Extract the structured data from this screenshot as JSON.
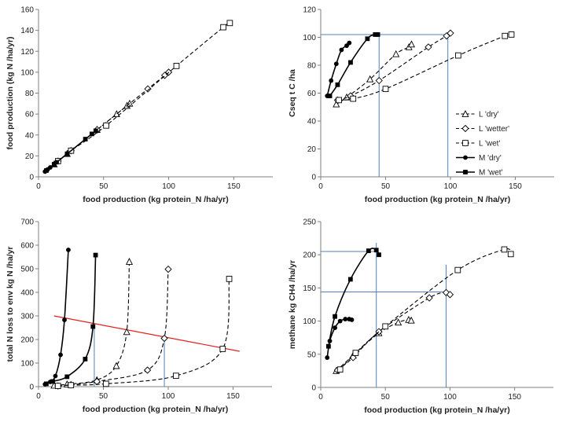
{
  "chart_data": [
    {
      "type": "line",
      "xlabel": "food production (kg protein_N /ha/yr)",
      "ylabel": "food production (kg N /ha/yr)",
      "xlim": [
        0,
        180
      ],
      "ylim": [
        0,
        160
      ],
      "xticks": [
        0,
        50,
        100,
        150
      ],
      "yticks": [
        0,
        20,
        40,
        60,
        80,
        100,
        120,
        140,
        160
      ],
      "series": [
        {
          "name": "L 'dry'",
          "marker": "triangle",
          "dash": true,
          "x": [
            12,
            22,
            45,
            60,
            68,
            70
          ],
          "y": [
            12,
            22,
            45,
            60,
            68,
            70
          ]
        },
        {
          "name": "L 'wetter'",
          "marker": "diamond",
          "dash": true,
          "x": [
            15,
            25,
            45,
            84,
            97,
            100
          ],
          "y": [
            15,
            25,
            45,
            84,
            97,
            100
          ]
        },
        {
          "name": "L 'wet'",
          "marker": "square_open",
          "dash": true,
          "x": [
            15,
            25,
            52,
            106,
            142,
            147
          ],
          "y": [
            15,
            25,
            49,
            106,
            143,
            147
          ]
        },
        {
          "name": "M 'dry'",
          "marker": "circle",
          "dash": false,
          "x": [
            5,
            7,
            9,
            12,
            14
          ],
          "y": [
            5,
            7,
            9,
            12,
            14
          ]
        },
        {
          "name": "M 'wet'",
          "marker": "square_filled",
          "dash": false,
          "x": [
            6,
            12,
            22,
            36,
            41,
            44
          ],
          "y": [
            6,
            12,
            22,
            36,
            41,
            44
          ]
        }
      ]
    },
    {
      "type": "line",
      "xlabel": "food production (kg protein_N /ha/yr)",
      "ylabel": "Cseq  t C /ha",
      "xlim": [
        0,
        180
      ],
      "ylim": [
        0,
        120
      ],
      "xticks": [
        0,
        50,
        100,
        150
      ],
      "yticks": [
        0,
        20,
        40,
        60,
        80,
        100,
        120
      ],
      "legend_position": "right",
      "series": [
        {
          "name": "L 'dry'",
          "marker": "triangle",
          "dash": true,
          "x": [
            12,
            20,
            38,
            58,
            68,
            70
          ],
          "y": [
            52,
            57,
            70,
            88,
            93,
            95
          ]
        },
        {
          "name": "L 'wetter'",
          "marker": "diamond",
          "dash": true,
          "x": [
            13,
            23,
            45,
            83,
            97,
            100
          ],
          "y": [
            55,
            58,
            69,
            93,
            101,
            103
          ]
        },
        {
          "name": "L 'wet'",
          "marker": "square_open",
          "dash": true,
          "x": [
            14,
            25,
            50,
            106,
            142,
            147
          ],
          "y": [
            55,
            56,
            63,
            87,
            101,
            102
          ]
        },
        {
          "name": "M 'dry'",
          "marker": "circle",
          "dash": false,
          "x": [
            5,
            8,
            12,
            16,
            20,
            22
          ],
          "y": [
            58,
            69,
            81,
            91,
            94,
            96
          ]
        },
        {
          "name": "M 'wet'",
          "marker": "square_filled",
          "dash": false,
          "x": [
            7,
            13,
            23,
            36,
            42,
            44
          ],
          "y": [
            58,
            66,
            82,
            99,
            102,
            102
          ]
        }
      ],
      "reference_lines": [
        {
          "x": [
            0,
            45
          ],
          "y": [
            102,
            102
          ]
        },
        {
          "x": [
            45,
            45
          ],
          "y": [
            0,
            102
          ]
        },
        {
          "x": [
            45,
            98
          ],
          "y": [
            102,
            102
          ]
        },
        {
          "x": [
            98,
            98
          ],
          "y": [
            0,
            102
          ]
        }
      ]
    },
    {
      "type": "line",
      "xlabel": "food production (kg protein_N /ha/yr)",
      "ylabel": "total N loss to env kg N /ha/yr",
      "xlim": [
        0,
        180
      ],
      "ylim": [
        0,
        700
      ],
      "xticks": [
        0,
        50,
        100,
        150
      ],
      "yticks": [
        0,
        100,
        200,
        300,
        400,
        500,
        600,
        700
      ],
      "series": [
        {
          "name": "L 'dry'",
          "marker": "triangle",
          "dash": true,
          "x": [
            12,
            22,
            45,
            60,
            68,
            70
          ],
          "y": [
            5,
            10,
            28,
            88,
            232,
            530
          ]
        },
        {
          "name": "L 'wetter'",
          "marker": "diamond",
          "dash": true,
          "x": [
            15,
            25,
            45,
            84,
            97,
            100
          ],
          "y": [
            3,
            8,
            22,
            70,
            205,
            498
          ]
        },
        {
          "name": "L 'wet'",
          "marker": "square_open",
          "dash": true,
          "x": [
            15,
            25,
            52,
            106,
            142,
            147
          ],
          "y": [
            3,
            6,
            12,
            46,
            160,
            457
          ]
        },
        {
          "name": "M 'dry'",
          "marker": "circle",
          "dash": false,
          "x": [
            5,
            9,
            13,
            17,
            20,
            23
          ],
          "y": [
            10,
            20,
            45,
            135,
            283,
            580
          ]
        },
        {
          "name": "M 'wet'",
          "marker": "square_filled",
          "dash": false,
          "x": [
            6,
            11,
            22,
            36,
            42,
            44
          ],
          "y": [
            12,
            22,
            42,
            117,
            255,
            558
          ]
        }
      ],
      "trend_line": {
        "color": "#e0201c",
        "x": [
          12,
          155
        ],
        "y": [
          300,
          150
        ]
      },
      "reference_lines": [
        {
          "x": [
            43,
            43
          ],
          "y": [
            0,
            255
          ]
        },
        {
          "x": [
            97,
            97
          ],
          "y": [
            0,
            205
          ]
        }
      ]
    },
    {
      "type": "line",
      "xlabel": "food production (kg protein_N /ha/yr)",
      "ylabel": "methane  kg CH4 /ha/yr",
      "xlim": [
        0,
        180
      ],
      "ylim": [
        0,
        250
      ],
      "xticks": [
        0,
        50,
        100,
        150
      ],
      "yticks": [
        0,
        50,
        100,
        150,
        200,
        250
      ],
      "series": [
        {
          "name": "L 'dry'",
          "marker": "triangle",
          "dash": true,
          "x": [
            12,
            25,
            45,
            60,
            68,
            70
          ],
          "y": [
            25,
            48,
            82,
            98,
            102,
            101
          ]
        },
        {
          "name": "L 'wetter'",
          "marker": "diamond",
          "dash": true,
          "x": [
            13,
            25,
            45,
            84,
            97,
            100
          ],
          "y": [
            26,
            45,
            84,
            135,
            143,
            140
          ]
        },
        {
          "name": "L 'wet'",
          "marker": "square_open",
          "dash": true,
          "x": [
            15,
            27,
            50,
            106,
            142,
            147
          ],
          "y": [
            27,
            52,
            92,
            177,
            208,
            201
          ]
        },
        {
          "name": "M 'dry'",
          "marker": "circle",
          "dash": false,
          "x": [
            5,
            7,
            11,
            15,
            19,
            22,
            24
          ],
          "y": [
            45,
            70,
            90,
            100,
            103,
            103,
            102
          ]
        },
        {
          "name": "M 'wet'",
          "marker": "square_filled",
          "dash": false,
          "x": [
            6,
            11,
            23,
            37,
            43,
            45
          ],
          "y": [
            62,
            107,
            163,
            206,
            207,
            200
          ]
        }
      ],
      "reference_lines": [
        {
          "x": [
            0,
            43
          ],
          "y": [
            205,
            205
          ]
        },
        {
          "x": [
            43,
            43
          ],
          "y": [
            0,
            218
          ]
        },
        {
          "x": [
            0,
            97
          ],
          "y": [
            144,
            144
          ]
        },
        {
          "x": [
            97,
            97
          ],
          "y": [
            0,
            185
          ]
        }
      ]
    }
  ]
}
